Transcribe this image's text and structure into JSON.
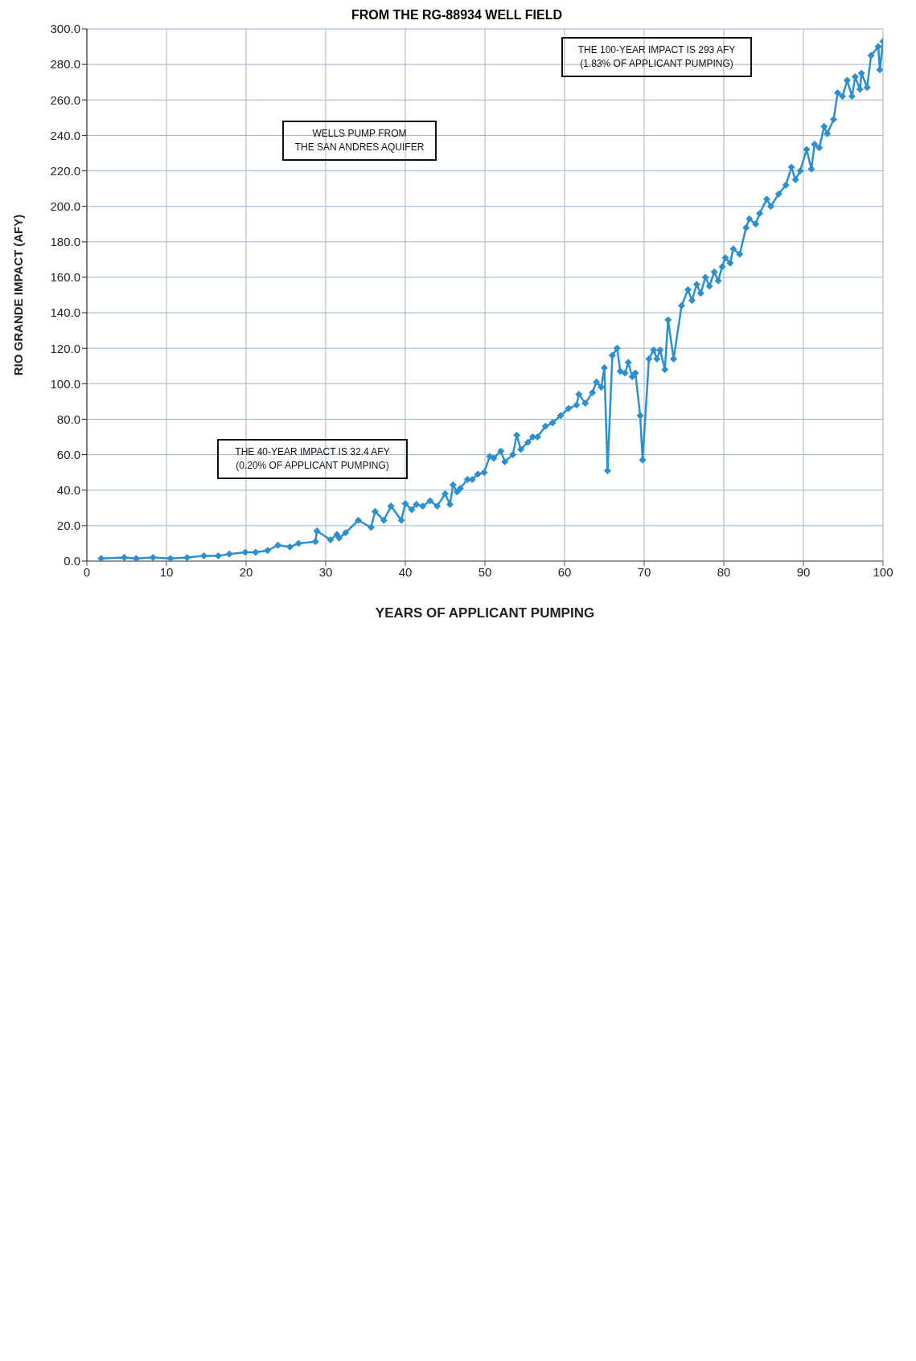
{
  "chart_data": {
    "type": "line",
    "title": "FROM THE RG-88934 WELL FIELD",
    "xlabel": "YEARS OF APPLICANT PUMPING",
    "ylabel": "RIO GRANDE IMPACT (AFY)",
    "annotations": [
      "THE 100-YEAR IMPACT IS 293 AFY\n(1.83% OF APPLICANT PUMPING)",
      "WELLS PUMP FROM\nTHE SAN ANDRES AQUIFER",
      "THE 40-YEAR IMPACT IS 32.4 AFY\n(0.20% OF APPLICANT PUMPING)"
    ],
    "x": [
      1.8,
      4.7,
      6.2,
      8.3,
      10.5,
      12.6,
      14.7,
      16.5,
      17.9,
      19.9,
      21.2,
      22.7,
      24,
      25.5,
      26.6,
      28.7,
      28.9,
      30.6,
      31.4,
      31.7,
      32.5,
      34.1,
      35.7,
      36.2,
      37.3,
      38.2,
      39.5,
      40,
      40.8,
      41.4,
      42.2,
      43.1,
      44,
      45,
      45.6,
      46,
      46.5,
      46.9,
      47.8,
      48.4,
      49.1,
      49.9,
      50.6,
      51.1,
      52,
      52.5,
      53.5,
      54,
      54.5,
      55.4,
      56,
      56.6,
      57.6,
      58.5,
      59.5,
      60.5,
      61.5,
      61.8,
      62.6,
      63.5,
      64,
      64.6,
      65,
      65.4,
      66,
      66.6,
      67,
      67.6,
      68,
      68.5,
      68.9,
      69.5,
      69.8,
      70.6,
      71.2,
      71.6,
      72,
      72.6,
      73,
      73.7,
      74.7,
      75.5,
      76,
      76.6,
      77.1,
      77.7,
      78.2,
      78.8,
      79.3,
      79.8,
      80.2,
      80.8,
      81.2,
      82,
      82.8,
      83.2,
      84,
      84.5,
      85.4,
      85.9,
      86.9,
      87.8,
      88.5,
      89,
      89.6,
      90.4,
      91,
      91.4,
      92,
      92.6,
      93,
      93.8,
      94.3,
      94.9,
      95.5,
      96.1,
      96.5,
      97.1,
      97.3,
      98,
      98.5,
      99.4,
      99.6,
      100
    ],
    "series": [
      {
        "color": "#2b8fd0",
        "values": [
          1.5,
          2,
          1.5,
          2,
          1.5,
          2,
          3,
          3,
          4,
          5,
          5,
          6,
          9,
          8,
          10,
          11,
          17,
          12,
          15,
          13,
          16,
          23,
          19,
          28,
          23,
          31,
          23,
          32.4,
          29,
          32,
          31,
          34,
          31,
          38,
          32,
          43,
          39,
          41,
          46,
          46,
          49,
          50,
          59,
          58,
          62,
          56,
          60,
          71,
          63,
          67,
          70,
          70,
          76,
          78,
          82,
          86,
          88,
          94,
          89,
          95,
          101,
          98,
          109,
          51,
          116,
          120,
          107,
          106,
          112,
          104,
          106,
          82,
          57,
          114,
          119,
          114,
          119,
          108,
          136,
          114,
          144,
          153,
          147,
          156,
          151,
          160,
          155,
          163,
          158,
          166,
          171,
          168,
          176,
          173,
          188,
          193,
          190,
          196,
          204,
          200,
          207,
          212,
          222,
          215,
          220,
          232,
          221,
          235,
          233,
          245,
          241,
          249,
          264,
          262,
          271,
          262,
          273,
          266,
          275,
          267,
          285,
          290,
          277,
          293
        ]
      }
    ],
    "xlim": [
      0,
      100
    ],
    "xticks": [
      0,
      10,
      20,
      30,
      40,
      50,
      60,
      70,
      80,
      90,
      100
    ],
    "ylim": [
      0,
      300
    ],
    "yticks": [
      {
        "value": 0,
        "label": "0.0"
      },
      {
        "value": 20,
        "label": "20.0"
      },
      {
        "value": 40,
        "label": "40.0"
      },
      {
        "value": 60,
        "label": "60.0"
      },
      {
        "value": 80,
        "label": "80.0"
      },
      {
        "value": 100,
        "label": "100.0"
      },
      {
        "value": 120,
        "label": "120.0"
      },
      {
        "value": 140,
        "label": "140.0"
      },
      {
        "value": 160,
        "label": "160.0"
      },
      {
        "value": 180,
        "label": "180.0"
      },
      {
        "value": 200,
        "label": "200.0"
      },
      {
        "value": 220,
        "label": "220.0"
      },
      {
        "value": 240,
        "label": "240.0"
      },
      {
        "value": 260,
        "label": "260.0"
      },
      {
        "value": 280,
        "label": "280.0"
      },
      {
        "value": 300,
        "label": "300.0"
      }
    ],
    "grid": true,
    "legend": false,
    "marker": "diamond",
    "line_style": "solid"
  }
}
